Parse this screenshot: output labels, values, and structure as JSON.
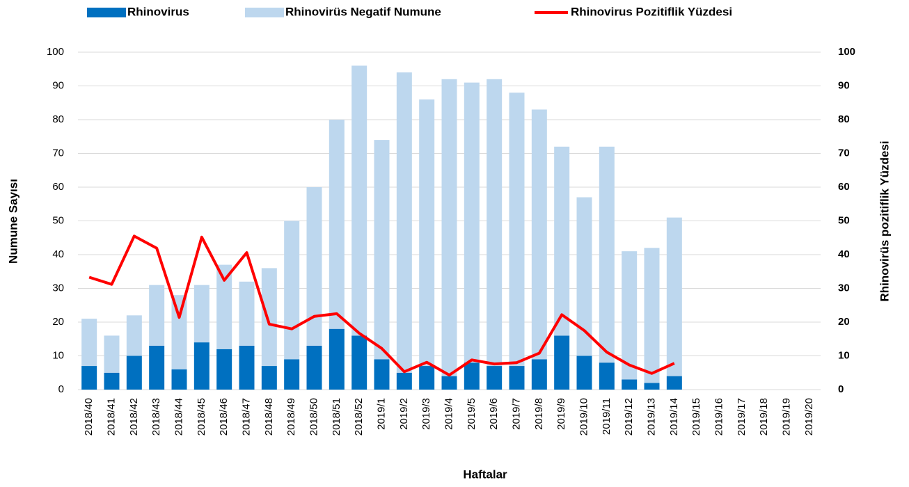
{
  "chart_data": {
    "type": "bar",
    "stacked": true,
    "categories": [
      "2018/40",
      "2018/41",
      "2018/42",
      "2018/43",
      "2018/44",
      "2018/45",
      "2018/46",
      "2018/47",
      "2018/48",
      "2018/49",
      "2018/50",
      "2018/51",
      "2018/52",
      "2019/1",
      "2019/2",
      "2019/3",
      "2019/4",
      "2019/5",
      "2019/6",
      "2019/7",
      "2019/8",
      "2019/9",
      "2019/10",
      "2019/11",
      "2019/12",
      "2019/13",
      "2019/14",
      "2019/15",
      "2019/16",
      "2019/17",
      "2019/18",
      "2019/19",
      "2019/20"
    ],
    "series": [
      {
        "name": "Rhinovirus",
        "color": "#0070c0",
        "values": [
          7,
          5,
          10,
          13,
          6,
          14,
          12,
          13,
          7,
          9,
          13,
          18,
          16,
          9,
          5,
          7,
          4,
          8,
          7,
          7,
          9,
          16,
          10,
          8,
          3,
          2,
          4,
          null,
          null,
          null,
          null,
          null,
          null
        ]
      },
      {
        "name": "Rhinovirüs Negatif Numune",
        "color": "#bdd7ee",
        "values": [
          14,
          11,
          12,
          18,
          22,
          17,
          25,
          19,
          29,
          41,
          47,
          62,
          80,
          65,
          89,
          79,
          88,
          83,
          85,
          81,
          74,
          56,
          47,
          64,
          38,
          40,
          47,
          null,
          null,
          null,
          null,
          null,
          null
        ]
      },
      {
        "name": "Rhinovirus Pozitiflik Yüzdesi",
        "color": "#ff0000",
        "type": "line",
        "axis": "y2",
        "values": [
          33.3,
          31.2,
          45.5,
          41.9,
          21.4,
          45.2,
          32.4,
          40.6,
          19.4,
          18,
          21.7,
          22.5,
          16.7,
          12.2,
          5.3,
          8.1,
          4.3,
          8.8,
          7.6,
          8,
          10.8,
          22.2,
          17.5,
          11.1,
          7.3,
          4.8,
          7.8,
          null,
          null,
          null,
          null,
          null,
          null
        ]
      }
    ],
    "ylim": [
      0,
      100
    ],
    "yticks": [
      0,
      10,
      20,
      30,
      40,
      50,
      60,
      70,
      80,
      90,
      100
    ],
    "y2lim": [
      0,
      100
    ],
    "y2ticks": [
      0,
      10,
      20,
      30,
      40,
      50,
      60,
      70,
      80,
      90,
      100
    ],
    "ylabel": "Numune Sayısı",
    "y2label": "Rhinovirüs pozitiflik Yüzdesi",
    "xlabel": "Haftalar",
    "grid": true,
    "legend": "top"
  }
}
